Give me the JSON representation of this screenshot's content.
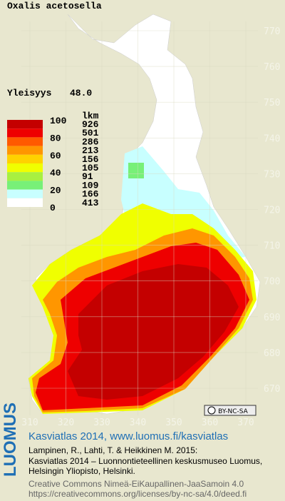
{
  "map": {
    "title": "Oxalis acetosella",
    "frequency": {
      "label": "Yleisyys",
      "value": "48.0"
    },
    "legend": {
      "scale_labels": [
        100,
        80,
        60,
        40,
        20,
        0
      ],
      "count_header": "lkm",
      "classes": [
        {
          "color": "#c40000",
          "count": 926
        },
        {
          "color": "#ee0000",
          "count": 501
        },
        {
          "color": "#ff5a00",
          "count": 286
        },
        {
          "color": "#ff9600",
          "count": 213
        },
        {
          "color": "#ffd200",
          "count": 156
        },
        {
          "color": "#f0ff00",
          "count": 105
        },
        {
          "color": "#a8f040",
          "count": 91
        },
        {
          "color": "#78f078",
          "count": 109
        },
        {
          "color": "#c8ffff",
          "count": 166
        },
        {
          "color": "#ffffff",
          "count": 413
        }
      ]
    },
    "northing_labels": [
      770,
      760,
      750,
      740,
      730,
      720,
      710,
      700,
      690,
      680,
      670
    ],
    "easting_labels": [
      310,
      320,
      330,
      340,
      350,
      360,
      370
    ],
    "license_badge": "BY-NC-SA"
  },
  "footer": {
    "logo": "LUOMUS",
    "heading": "Kasviatlas 2014, www.luomus.fi/kasviatlas",
    "citation": [
      "Lampinen, R., Lahti, T. & Heikkinen M. 2015:",
      "Kasviatlas 2014 – Luonnontieteellinen keskusmuseo Luomus,",
      "Helsingin Yliopisto, Helsinki."
    ],
    "license": [
      "Creative Commons Nimeä-EiKaupallinen-JaaSamoin 4.0",
      "https://creativecommons.org/licenses/by-nc-sa/4.0/deed.fi"
    ]
  }
}
